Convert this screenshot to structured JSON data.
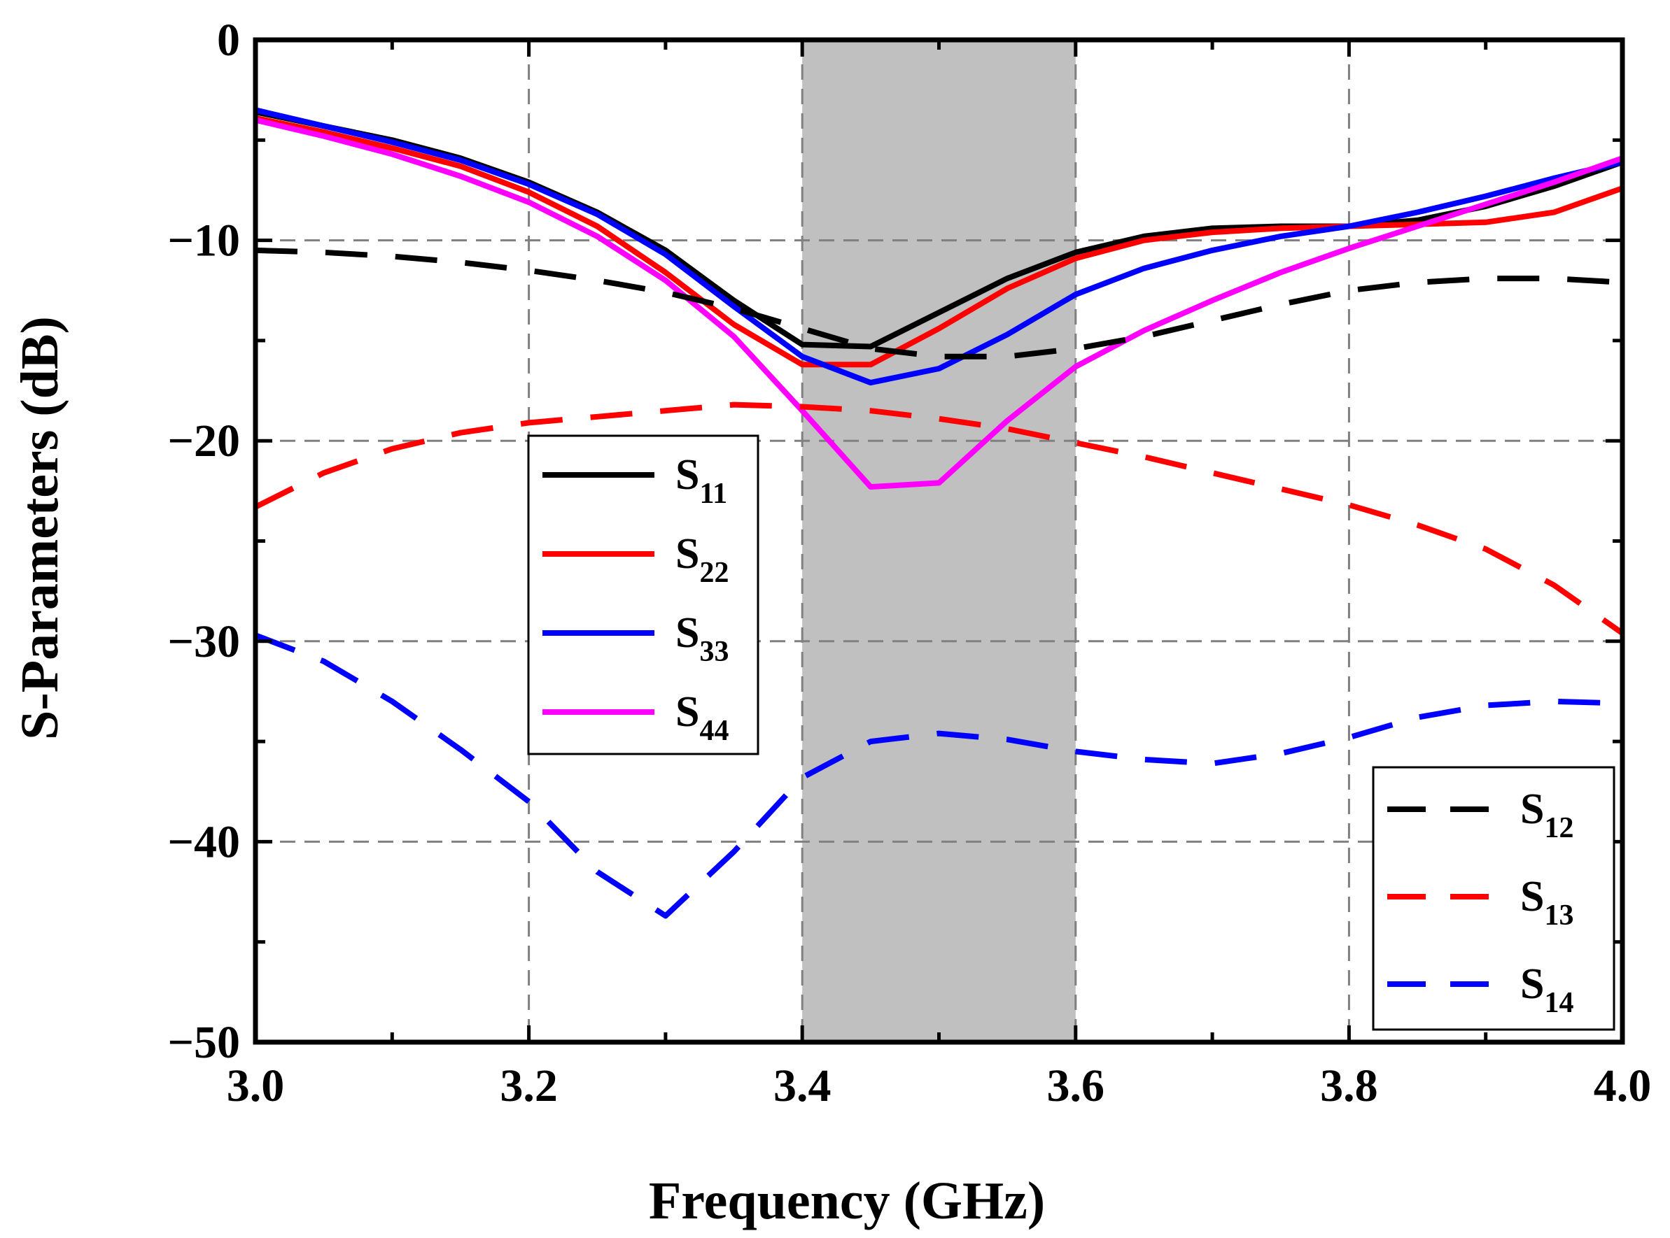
{
  "chart_data": {
    "type": "line",
    "xlabel": "Frequency (GHz)",
    "ylabel": "S-Parameters (dB)",
    "xlim": [
      3.0,
      4.0
    ],
    "ylim": [
      -50,
      0
    ],
    "xticks": [
      3.0,
      3.2,
      3.4,
      3.6,
      3.8,
      4.0
    ],
    "xtick_labels": [
      "3.0",
      "3.2",
      "3.4",
      "3.6",
      "3.8",
      "4.0"
    ],
    "yticks": [
      0,
      -10,
      -20,
      -30,
      -40,
      -50
    ],
    "ytick_labels": [
      "0",
      "−10",
      "−20",
      "−30",
      "−40",
      "−50"
    ],
    "grid": true,
    "shaded_band": {
      "x_start": 3.4,
      "x_end": 3.6,
      "color": "#c0c0c0"
    },
    "legend_left": {
      "placement": "center-left",
      "entries": [
        "S11",
        "S22",
        "S33",
        "S44"
      ]
    },
    "legend_right": {
      "placement": "bottom-right",
      "entries": [
        "S12",
        "S13",
        "S14"
      ]
    },
    "series": [
      {
        "name": "S11",
        "base": "S",
        "sub": "11",
        "color": "#000000",
        "dash": "solid",
        "x": [
          3.0,
          3.05,
          3.1,
          3.15,
          3.2,
          3.25,
          3.3,
          3.35,
          3.4,
          3.45,
          3.5,
          3.55,
          3.6,
          3.65,
          3.7,
          3.75,
          3.8,
          3.85,
          3.9,
          3.95,
          4.0
        ],
        "y": [
          -3.6,
          -4.3,
          -5.0,
          -5.9,
          -7.1,
          -8.6,
          -10.5,
          -13.0,
          -15.2,
          -15.3,
          -13.6,
          -11.9,
          -10.6,
          -9.8,
          -9.4,
          -9.3,
          -9.3,
          -9.0,
          -8.3,
          -7.3,
          -6.1
        ]
      },
      {
        "name": "S22",
        "base": "S",
        "sub": "22",
        "color": "#ff0000",
        "dash": "solid",
        "x": [
          3.0,
          3.05,
          3.1,
          3.15,
          3.2,
          3.25,
          3.3,
          3.35,
          3.4,
          3.45,
          3.5,
          3.55,
          3.6,
          3.65,
          3.7,
          3.75,
          3.8,
          3.85,
          3.9,
          3.95,
          4.0
        ],
        "y": [
          -3.9,
          -4.6,
          -5.4,
          -6.3,
          -7.6,
          -9.3,
          -11.6,
          -14.2,
          -16.2,
          -16.2,
          -14.4,
          -12.4,
          -10.9,
          -10.0,
          -9.6,
          -9.4,
          -9.3,
          -9.2,
          -9.1,
          -8.6,
          -7.4
        ]
      },
      {
        "name": "S33",
        "base": "S",
        "sub": "33",
        "color": "#0000ff",
        "dash": "solid",
        "x": [
          3.0,
          3.05,
          3.1,
          3.15,
          3.2,
          3.25,
          3.3,
          3.35,
          3.4,
          3.45,
          3.5,
          3.55,
          3.6,
          3.65,
          3.7,
          3.75,
          3.8,
          3.85,
          3.9,
          3.95,
          4.0
        ],
        "y": [
          -3.5,
          -4.3,
          -5.1,
          -6.0,
          -7.2,
          -8.7,
          -10.7,
          -13.3,
          -15.8,
          -17.1,
          -16.4,
          -14.7,
          -12.7,
          -11.4,
          -10.5,
          -9.8,
          -9.3,
          -8.6,
          -7.8,
          -6.9,
          -6.1
        ]
      },
      {
        "name": "S44",
        "base": "S",
        "sub": "44",
        "color": "#ff00ff",
        "dash": "solid",
        "x": [
          3.0,
          3.05,
          3.1,
          3.15,
          3.2,
          3.25,
          3.3,
          3.35,
          3.4,
          3.45,
          3.5,
          3.55,
          3.6,
          3.65,
          3.7,
          3.75,
          3.8,
          3.85,
          3.9,
          3.95,
          4.0
        ],
        "y": [
          -4.0,
          -4.8,
          -5.7,
          -6.8,
          -8.1,
          -9.8,
          -12.0,
          -14.8,
          -18.5,
          -22.3,
          -22.1,
          -19.0,
          -16.3,
          -14.5,
          -13.0,
          -11.6,
          -10.4,
          -9.3,
          -8.2,
          -7.1,
          -5.9
        ]
      },
      {
        "name": "S12",
        "base": "S",
        "sub": "12",
        "color": "#000000",
        "dash": "dashed",
        "x": [
          3.0,
          3.05,
          3.1,
          3.15,
          3.2,
          3.25,
          3.3,
          3.35,
          3.4,
          3.45,
          3.5,
          3.55,
          3.6,
          3.65,
          3.7,
          3.75,
          3.8,
          3.85,
          3.9,
          3.95,
          4.0
        ],
        "y": [
          -10.5,
          -10.6,
          -10.8,
          -11.1,
          -11.5,
          -12.0,
          -12.6,
          -13.4,
          -14.4,
          -15.4,
          -15.8,
          -15.8,
          -15.4,
          -14.8,
          -14.0,
          -13.2,
          -12.5,
          -12.1,
          -11.9,
          -11.9,
          -12.1
        ]
      },
      {
        "name": "S13",
        "base": "S",
        "sub": "13",
        "color": "#ff0000",
        "dash": "dashed",
        "x": [
          3.0,
          3.05,
          3.1,
          3.15,
          3.2,
          3.25,
          3.3,
          3.35,
          3.4,
          3.45,
          3.5,
          3.55,
          3.6,
          3.65,
          3.7,
          3.75,
          3.8,
          3.85,
          3.9,
          3.95,
          4.0
        ],
        "y": [
          -23.3,
          -21.6,
          -20.4,
          -19.6,
          -19.1,
          -18.8,
          -18.5,
          -18.2,
          -18.3,
          -18.5,
          -18.9,
          -19.4,
          -20.1,
          -20.8,
          -21.6,
          -22.4,
          -23.2,
          -24.2,
          -25.4,
          -27.2,
          -29.6
        ]
      },
      {
        "name": "S14",
        "base": "S",
        "sub": "14",
        "color": "#0000ff",
        "dash": "dashed",
        "x": [
          3.0,
          3.05,
          3.1,
          3.15,
          3.2,
          3.25,
          3.3,
          3.35,
          3.4,
          3.45,
          3.5,
          3.55,
          3.6,
          3.65,
          3.7,
          3.75,
          3.8,
          3.85,
          3.9,
          3.95,
          4.0
        ],
        "y": [
          -29.7,
          -31.0,
          -33.0,
          -35.4,
          -38.0,
          -41.5,
          -43.7,
          -40.5,
          -36.8,
          -35.0,
          -34.6,
          -34.9,
          -35.5,
          -35.9,
          -36.1,
          -35.6,
          -34.8,
          -33.8,
          -33.2,
          -33.0,
          -33.1
        ]
      }
    ]
  }
}
